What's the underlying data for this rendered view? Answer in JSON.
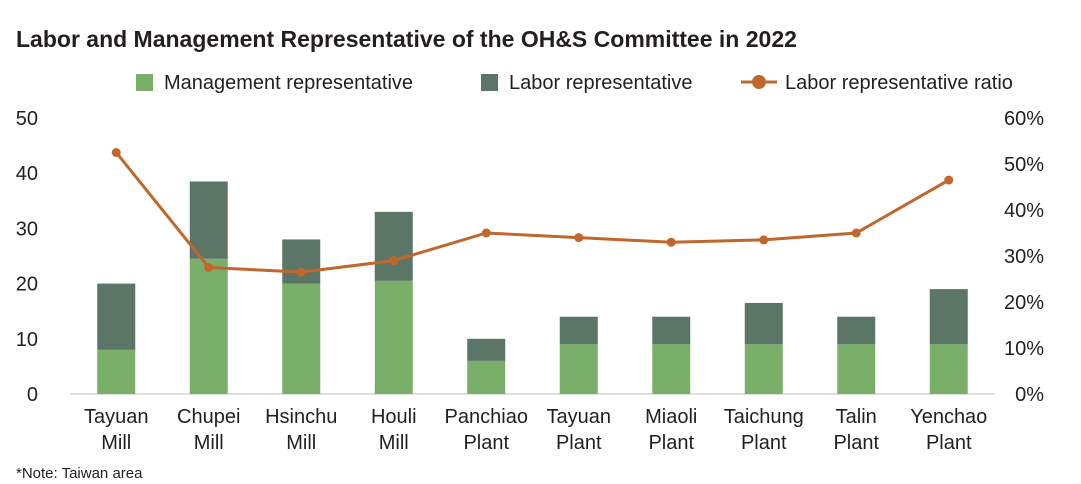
{
  "chart_data": {
    "type": "bar",
    "stacked": true,
    "title": "Labor and Management Representative of the OH&S Committee in 2022",
    "note": "*Note: Taiwan area",
    "categories": [
      [
        "Tayuan",
        "Mill"
      ],
      [
        "Chupei",
        "Mill"
      ],
      [
        "Hsinchu",
        "Mill"
      ],
      [
        "Houli",
        "Mill"
      ],
      [
        "Panchiao",
        "Plant"
      ],
      [
        "Tayuan",
        "Plant"
      ],
      [
        "Miaoli",
        "Plant"
      ],
      [
        "Taichung",
        "Plant"
      ],
      [
        "Talin",
        "Plant"
      ],
      [
        "Yenchao",
        "Plant"
      ]
    ],
    "series": [
      {
        "name": "Management representative",
        "type": "bar",
        "axis": "left",
        "color": "#7aaf6a",
        "values": [
          8,
          24.5,
          20,
          20.5,
          6,
          9,
          9,
          9,
          9,
          9
        ]
      },
      {
        "name": "Labor representative",
        "type": "bar",
        "axis": "left",
        "color": "#5b7566",
        "values": [
          12,
          14,
          8,
          12.5,
          4,
          5,
          5,
          7.5,
          5,
          10
        ]
      },
      {
        "name": "Labor representative ratio",
        "type": "line",
        "axis": "right",
        "color": "#c0672b",
        "values": [
          52.5,
          27.5,
          26.5,
          29,
          35,
          34,
          33,
          33.5,
          35,
          46.5
        ]
      }
    ],
    "y_left": {
      "min": 0,
      "max": 50,
      "ticks": [
        "0",
        "10",
        "20",
        "30",
        "40",
        "50"
      ]
    },
    "y_right": {
      "min": 0,
      "max": 60,
      "ticks": [
        "0%",
        "10%",
        "20%",
        "30%",
        "40%",
        "50%",
        "60%"
      ]
    },
    "grid": false,
    "legend_position": "top"
  }
}
